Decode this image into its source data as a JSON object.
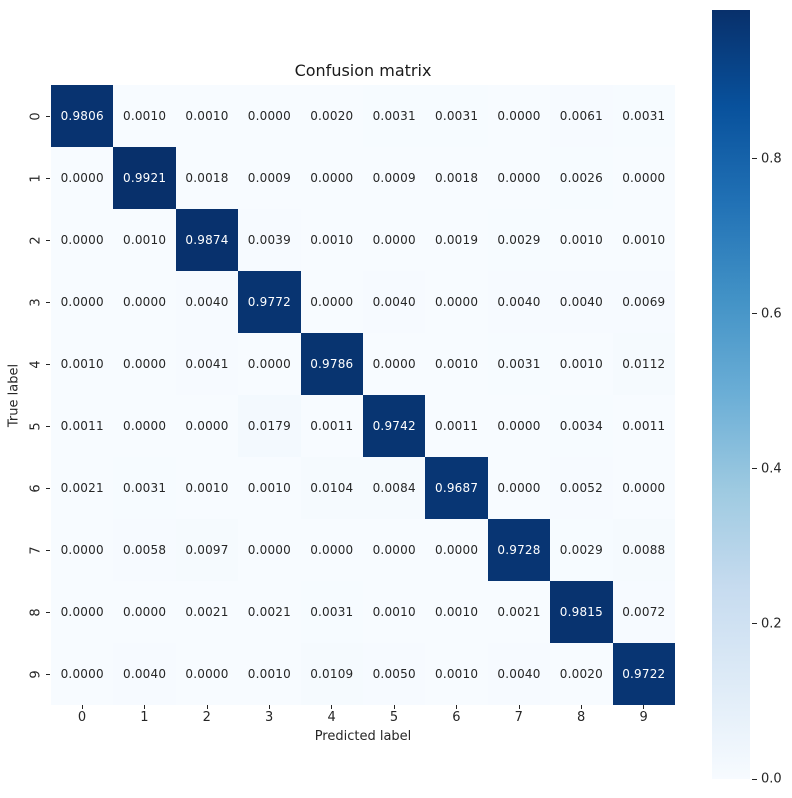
{
  "chart_data": {
    "type": "heatmap",
    "title": "Confusion matrix",
    "xlabel": "Predicted label",
    "ylabel": "True label",
    "x_tick_labels": [
      "0",
      "1",
      "2",
      "3",
      "4",
      "5",
      "6",
      "7",
      "8",
      "9"
    ],
    "y_tick_labels": [
      "0",
      "1",
      "2",
      "3",
      "4",
      "5",
      "6",
      "7",
      "8",
      "9"
    ],
    "matrix": [
      [
        0.9806,
        0.001,
        0.001,
        0.0,
        0.002,
        0.0031,
        0.0031,
        0.0,
        0.0061,
        0.0031
      ],
      [
        0.0,
        0.9921,
        0.0018,
        0.0009,
        0.0,
        0.0009,
        0.0018,
        0.0,
        0.0026,
        0.0
      ],
      [
        0.0,
        0.001,
        0.9874,
        0.0039,
        0.001,
        0.0,
        0.0019,
        0.0029,
        0.001,
        0.001
      ],
      [
        0.0,
        0.0,
        0.004,
        0.9772,
        0.0,
        0.004,
        0.0,
        0.004,
        0.004,
        0.0069
      ],
      [
        0.001,
        0.0,
        0.0041,
        0.0,
        0.9786,
        0.0,
        0.001,
        0.0031,
        0.001,
        0.0112
      ],
      [
        0.0011,
        0.0,
        0.0,
        0.0179,
        0.0011,
        0.9742,
        0.0011,
        0.0,
        0.0034,
        0.0011
      ],
      [
        0.0021,
        0.0031,
        0.001,
        0.001,
        0.0104,
        0.0084,
        0.9687,
        0.0,
        0.0052,
        0.0
      ],
      [
        0.0,
        0.0058,
        0.0097,
        0.0,
        0.0,
        0.0,
        0.0,
        0.9728,
        0.0029,
        0.0088
      ],
      [
        0.0,
        0.0,
        0.0021,
        0.0021,
        0.0031,
        0.001,
        0.001,
        0.0021,
        0.9815,
        0.0072
      ],
      [
        0.0,
        0.004,
        0.0,
        0.001,
        0.0109,
        0.005,
        0.001,
        0.004,
        0.002,
        0.9722
      ]
    ],
    "cell_value_decimals": 4,
    "vmin": 0.0,
    "vmax": 0.9921,
    "grid": false,
    "colormap_name": "Blues",
    "colormap_stops": [
      "#f7fbff",
      "#deebf7",
      "#c6dbef",
      "#9ecae1",
      "#6baed6",
      "#4292c6",
      "#2171b5",
      "#08519c",
      "#08306b"
    ],
    "annotation_text_light": "#ffffff",
    "annotation_text_dark": "#262626",
    "colorbar": {
      "position": "right",
      "tick_values": [
        0.8,
        0.6,
        0.4,
        0.2,
        0.0
      ],
      "tick_labels": [
        "0.8",
        "0.6",
        "0.4",
        "0.2",
        "0.0"
      ]
    }
  }
}
